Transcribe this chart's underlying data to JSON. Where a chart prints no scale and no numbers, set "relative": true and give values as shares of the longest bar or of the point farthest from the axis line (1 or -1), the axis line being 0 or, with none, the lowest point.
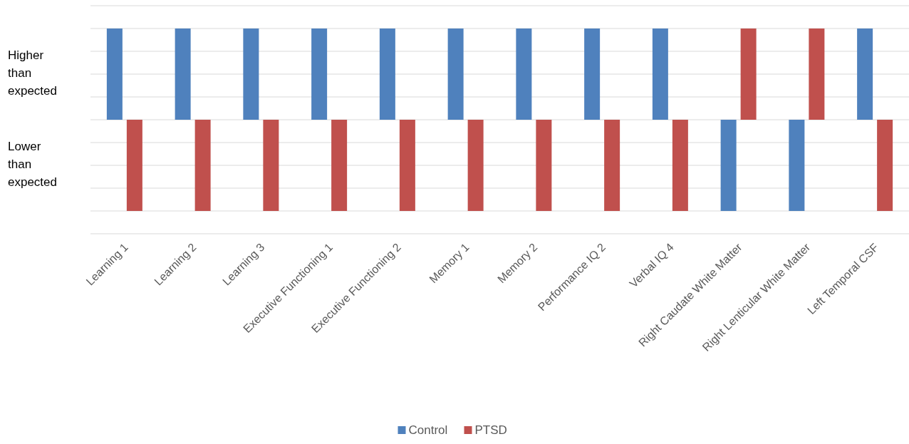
{
  "chart_data": {
    "type": "bar",
    "relative": true,
    "categories": [
      "Learning 1",
      "Learning 2",
      "Learning 3",
      "Executive Functioning 1",
      "Executive Functioning 2",
      "Memory 1",
      "Memory 2",
      "Performance IQ 2",
      "Verbal IQ 4",
      "Right Caudate White Matter",
      "Right Lenticular White Matter",
      "Left Temporal CSF"
    ],
    "series": [
      {
        "name": "Control",
        "color": "#4f81bd",
        "values": [
          1,
          1,
          1,
          1,
          1,
          1,
          1,
          1,
          1,
          -1,
          -1,
          1
        ]
      },
      {
        "name": "PTSD",
        "color": "#c0504d",
        "values": [
          -1,
          -1,
          -1,
          -1,
          -1,
          -1,
          -1,
          -1,
          -1,
          1,
          1,
          -1
        ]
      }
    ],
    "annotations": [
      "Higher than expected",
      "Lower than expected"
    ],
    "grid": true,
    "legend": "bottom"
  }
}
